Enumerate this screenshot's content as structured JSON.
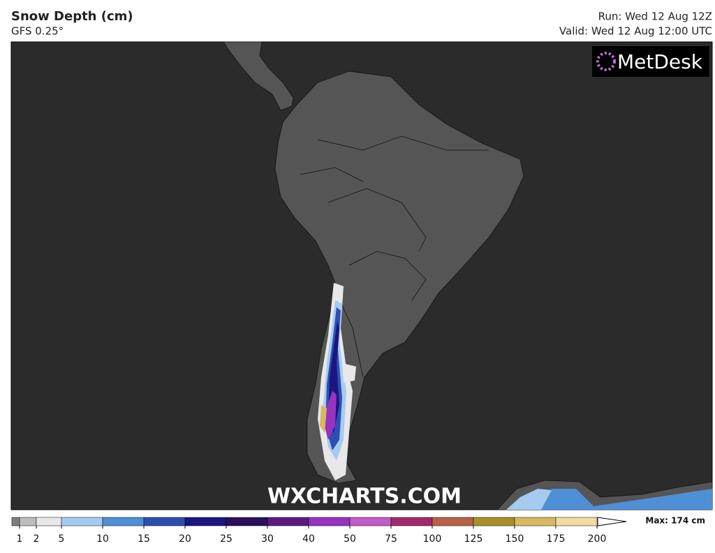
{
  "header": {
    "title": "Snow Depth (cm)",
    "model": "GFS 0.25°",
    "run": "Run: Wed 12 Aug 12Z",
    "valid": "Valid: Wed 12 Aug 12:00 UTC"
  },
  "logo": "MetDesk",
  "watermark": "WXCHARTS.COM",
  "legend": {
    "ticks": [
      1,
      2,
      5,
      10,
      15,
      20,
      25,
      30,
      40,
      50,
      75,
      100,
      125,
      150,
      175,
      200
    ],
    "colors": [
      "#7f7f7f",
      "#bdbdbd",
      "#e8e8e8",
      "#a6cbf0",
      "#4f8fd6",
      "#2f4fb0",
      "#1a1680",
      "#2c0f5c",
      "#5b1a82",
      "#9932c0",
      "#c25ac8",
      "#a02a6e",
      "#b86048",
      "#a89028",
      "#d8b860",
      "#f0dca0"
    ],
    "max_label": "Max: 174 cm"
  }
}
